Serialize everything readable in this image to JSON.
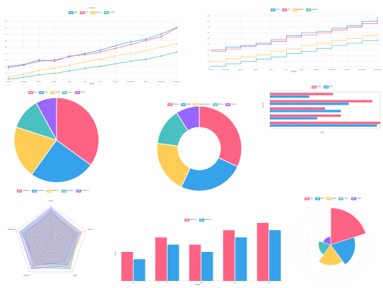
{
  "colors": {
    "red": "#ff6384",
    "blue": "#36a2eb",
    "yellow": "#ffcd56",
    "teal": "#4bc0c0",
    "purple": "#9966ff",
    "grey": "#c9cbcf",
    "orange": "#ff9f40"
  },
  "chart_data": [
    {
      "type": "line",
      "title": "# Views",
      "xlabel": "Month",
      "ylabel": "",
      "categories": [
        "January",
        "February",
        "March",
        "April",
        "May",
        "June",
        "July",
        "August",
        "September",
        "October",
        "November",
        "December"
      ],
      "ylim": [
        0,
        90
      ],
      "yticks": [
        0,
        10,
        20,
        30,
        40,
        50,
        60,
        70,
        80,
        90
      ],
      "grid": true,
      "legend": "top",
      "series": [
        {
          "name": "Web",
          "color": "#36a2eb",
          "values": [
            18,
            22,
            28,
            30,
            35,
            40,
            45,
            52,
            58,
            62,
            70,
            80
          ]
        },
        {
          "name": "iOS",
          "color": "#ff6384",
          "values": [
            20,
            23,
            30,
            28,
            36,
            38,
            42,
            48,
            54,
            60,
            66,
            80
          ]
        },
        {
          "name": "Android",
          "color": "#ffcd56",
          "values": [
            3,
            8,
            14,
            17,
            22,
            27,
            31,
            36,
            40,
            44,
            50,
            55
          ]
        },
        {
          "name": "Desktop",
          "color": "#4bc0c0",
          "values": [
            0,
            3,
            7,
            9,
            13,
            17,
            20,
            24,
            28,
            31,
            36,
            42
          ]
        }
      ]
    },
    {
      "type": "line",
      "title": "",
      "xlabel": "Month",
      "ylabel": "",
      "stepped": true,
      "categories": [
        "January",
        "February",
        "March",
        "April",
        "May",
        "June",
        "July",
        "August",
        "September",
        "October",
        "November",
        "December"
      ],
      "ylim": [
        0,
        90
      ],
      "yticks": [
        0,
        10,
        20,
        30,
        40,
        50,
        60,
        70,
        80,
        90
      ],
      "grid": true,
      "legend": "top",
      "series": [
        {
          "name": "Web",
          "color": "#36a2eb",
          "values": [
            30,
            35,
            38,
            42,
            48,
            55,
            60,
            62,
            68,
            72,
            80,
            88
          ]
        },
        {
          "name": "iOS",
          "color": "#ff6384",
          "values": [
            28,
            32,
            36,
            40,
            45,
            52,
            56,
            60,
            65,
            70,
            76,
            82
          ]
        },
        {
          "name": "Android",
          "color": "#ffcd56",
          "values": [
            10,
            14,
            18,
            22,
            28,
            32,
            38,
            42,
            46,
            50,
            55,
            58
          ]
        },
        {
          "name": "Desktop",
          "color": "#4bc0c0",
          "values": [
            2,
            6,
            10,
            14,
            18,
            24,
            28,
            33,
            38,
            42,
            46,
            50
          ]
        }
      ]
    },
    {
      "type": "pie",
      "legend": "top",
      "categories": [
        "Red",
        "Blue",
        "Yellow",
        "Green",
        "Purple"
      ],
      "values": [
        35,
        25,
        20,
        12,
        8
      ]
    },
    {
      "type": "pie",
      "doughnut": true,
      "legend": "top",
      "categories": [
        "Chrome",
        "Safari",
        "Internet Explorer",
        "Firefox",
        "Opera"
      ],
      "values": [
        32,
        25,
        20,
        14,
        9
      ]
    },
    {
      "type": "bar",
      "orientation": "horizontal",
      "xlabel": "Year",
      "ylabel": "Month",
      "legend": "top",
      "categories": [
        "January",
        "February",
        "March",
        "April",
        "May"
      ],
      "xlim": [
        0,
        70
      ],
      "series": [
        {
          "name": "2017",
          "color": "#ff6384",
          "values": [
            40,
            65,
            35,
            45,
            70
          ]
        },
        {
          "name": "2018",
          "color": "#36a2eb",
          "values": [
            25,
            50,
            45,
            30,
            68
          ]
        }
      ]
    },
    {
      "type": "radar",
      "legend": "top",
      "categories": [
        "Speed",
        "Power",
        "Agility",
        "Strength",
        "Endurance"
      ],
      "rmax": 100,
      "series": [
        {
          "name": "Dataset 1",
          "color": "#ff6384",
          "values": [
            85,
            70,
            65,
            80,
            75
          ]
        },
        {
          "name": "Dataset 2",
          "color": "#36a2eb",
          "values": [
            90,
            80,
            75,
            70,
            85
          ]
        },
        {
          "name": "Dataset 3",
          "color": "#ffcd56",
          "values": [
            75,
            90,
            85,
            75,
            70
          ]
        },
        {
          "name": "Dataset 4",
          "color": "#4bc0c0",
          "values": [
            80,
            75,
            90,
            85,
            80
          ]
        },
        {
          "name": "Dataset 5",
          "color": "#9966ff",
          "values": [
            95,
            85,
            80,
            90,
            90
          ]
        }
      ]
    },
    {
      "type": "bar",
      "xlabel": "Month",
      "ylabel": "Count",
      "legend": "top",
      "categories": [
        "Jan",
        "Feb",
        "Mar",
        "Apr",
        "May"
      ],
      "ylim": [
        0,
        80
      ],
      "series": [
        {
          "name": "Dataset 1",
          "color": "#ff6384",
          "values": [
            40,
            60,
            50,
            70,
            80
          ]
        },
        {
          "name": "Dataset 2",
          "color": "#36a2eb",
          "values": [
            30,
            50,
            40,
            60,
            70
          ]
        }
      ]
    },
    {
      "type": "polarArea",
      "legend": "top",
      "categories": [
        "Red",
        "Blue",
        "Yellow",
        "Green",
        "Purple"
      ],
      "rmax": 100,
      "values": [
        90,
        60,
        50,
        30,
        20
      ]
    }
  ]
}
